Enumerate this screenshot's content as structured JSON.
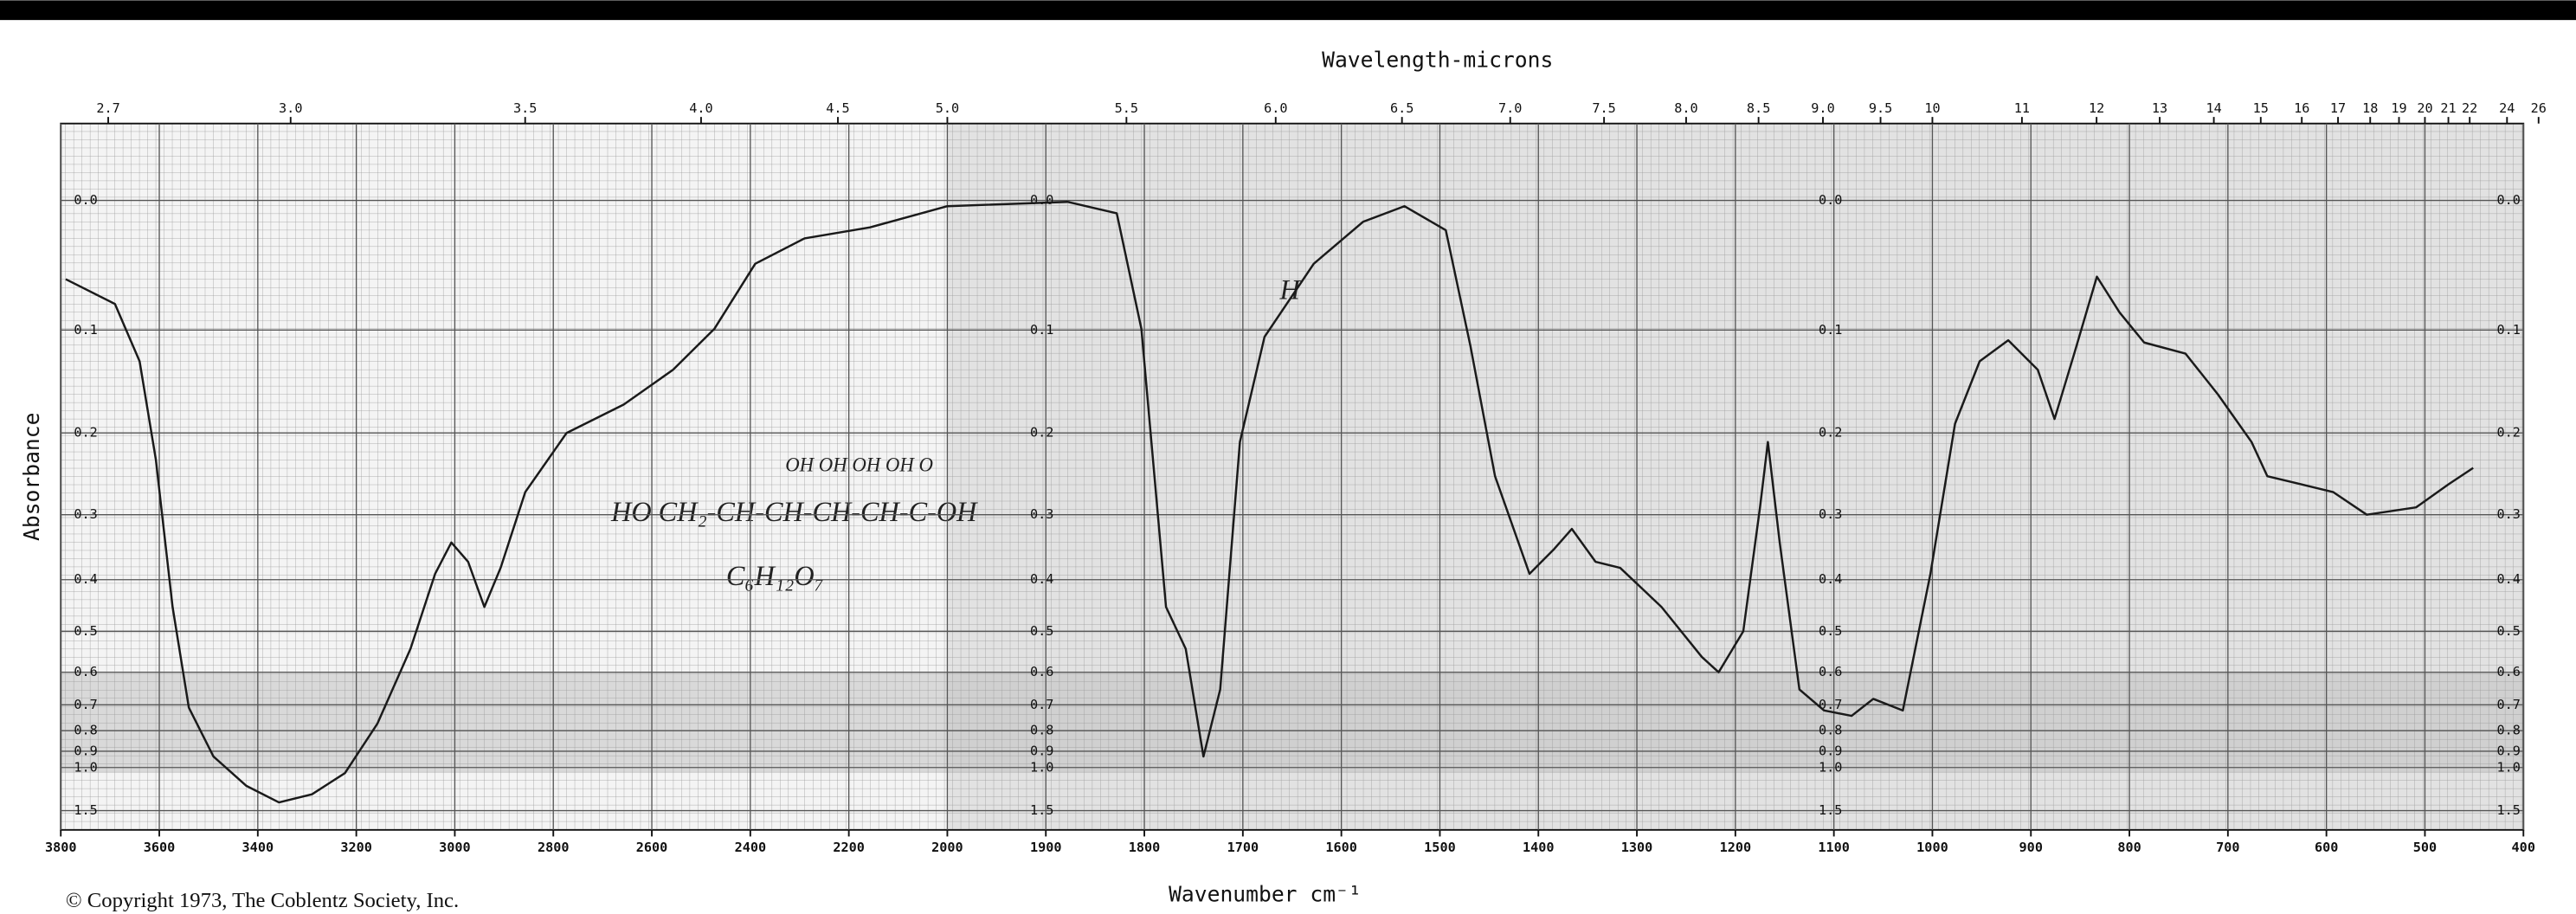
{
  "chart_data": {
    "type": "line",
    "title": "Wavelength-microns",
    "xlabel": "Wavenumber cm⁻¹",
    "ylabel": "Absorbance",
    "copyright": "© Copyright 1973, The Coblentz Society, Inc.",
    "annotations": [
      "HO CH₂-CH-CH-CH-CH-C-OH",
      "OH  OH  OH  OH  O",
      "C₆H₁₂O₇",
      "H"
    ],
    "xlim": [
      3800,
      400
    ],
    "x_scale_break": {
      "at": 2000,
      "ratio": 2
    },
    "xticks": [
      3800,
      3600,
      3400,
      3200,
      3000,
      2800,
      2600,
      2400,
      2200,
      2000,
      1900,
      1800,
      1700,
      1600,
      1500,
      1400,
      1300,
      1200,
      1100,
      1000,
      900,
      800,
      700,
      600,
      500,
      400
    ],
    "top_ticks": [
      2.7,
      {
        "value": 3,
        "label": "3.0"
      },
      3.5,
      {
        "value": 4,
        "label": "4.0"
      },
      4.5,
      {
        "value": 5,
        "label": "5.0"
      },
      5.5,
      {
        "value": 6,
        "label": "6.0"
      },
      6.5,
      {
        "value": 7,
        "label": "7.0"
      },
      7.5,
      {
        "value": 8,
        "label": "8.0"
      },
      8.5,
      {
        "value": 9,
        "label": "9.0"
      },
      9.5,
      10,
      11,
      12,
      13,
      14,
      15,
      16,
      17,
      18,
      19,
      20,
      21,
      22,
      24,
      26
    ],
    "ylim": [
      -0.05,
      3
    ],
    "yscale": "transmittance",
    "yticks": [
      {
        "value": 0,
        "label": "0.0"
      },
      0.1,
      0.2,
      0.3,
      0.4,
      0.5,
      0.6,
      0.7,
      0.8,
      0.9,
      {
        "value": 1,
        "label": "1.0"
      },
      1.5
    ],
    "grid": true,
    "x": [
      3790,
      3690,
      3640,
      3607,
      3573,
      3540,
      3490,
      3423,
      3357,
      3290,
      3223,
      3157,
      3090,
      3040,
      3007,
      2973,
      2940,
      2907,
      2857,
      2773,
      2657,
      2557,
      2473,
      2390,
      2290,
      2157,
      2000,
      1878,
      1828,
      1803,
      1778,
      1758,
      1740,
      1723,
      1703,
      1678,
      1628,
      1578,
      1536,
      1494,
      1469,
      1444,
      1409,
      1384,
      1366,
      1342,
      1317,
      1275,
      1234,
      1217,
      1192,
      1175,
      1167,
      1155,
      1135,
      1110,
      1082,
      1060,
      1030,
      1002,
      977,
      952,
      923,
      893,
      876,
      856,
      833,
      810,
      785,
      743,
      710,
      676,
      660,
      626,
      593,
      559,
      509,
      476,
      451
    ],
    "series": [
      {
        "name": "Absorbance",
        "color": "#1a1a1a",
        "values": [
          0.058,
          0.078,
          0.128,
          0.23,
          0.45,
          0.71,
          0.93,
          1.15,
          1.35,
          1.24,
          1.04,
          0.77,
          0.54,
          0.39,
          0.34,
          0.37,
          0.45,
          0.38,
          0.27,
          0.2,
          0.17,
          0.136,
          0.099,
          0.046,
          0.027,
          0.019,
          0.004,
          0.001,
          0.009,
          0.099,
          0.45,
          0.54,
          0.93,
          0.65,
          0.21,
          0.106,
          0.046,
          0.015,
          0.004,
          0.021,
          0.114,
          0.25,
          0.39,
          0.35,
          0.32,
          0.37,
          0.38,
          0.45,
          0.56,
          0.6,
          0.5,
          0.29,
          0.21,
          0.34,
          0.65,
          0.72,
          0.74,
          0.68,
          0.72,
          0.39,
          0.19,
          0.128,
          0.109,
          0.136,
          0.185,
          0.121,
          0.056,
          0.085,
          0.111,
          0.121,
          0.16,
          0.21,
          0.25,
          0.26,
          0.27,
          0.3,
          0.29,
          0.26,
          0.24
        ]
      }
    ]
  }
}
